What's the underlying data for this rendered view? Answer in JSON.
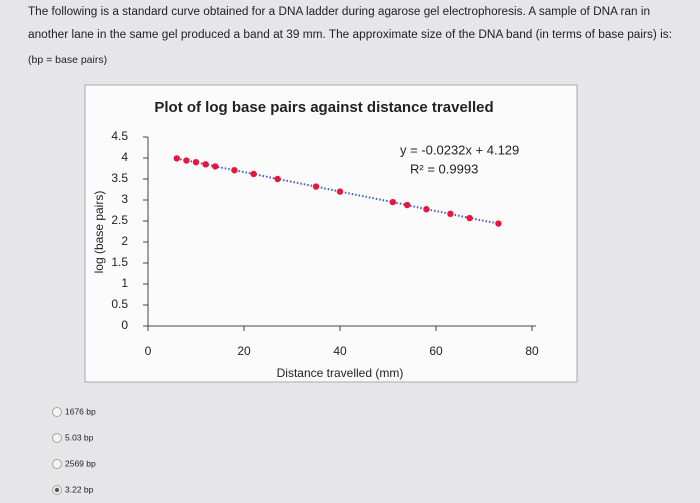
{
  "question": {
    "lines": [
      "The following is a standard curve obtained for a DNA ladder during agarose gel electrophoresis. A sample of DNA ran in",
      "another lane in the same gel produced a band at 39 mm. The approximate size of the DNA band (in terms of base pairs) is:"
    ],
    "note": "(bp = base pairs)"
  },
  "chart_data": {
    "type": "scatter",
    "title": "Plot of log base pairs against distance travelled",
    "x_label": "Distance travelled (mm)",
    "y_label": "log (base pairs)",
    "x": [
      6,
      8,
      10,
      12,
      14,
      18,
      22,
      27,
      35,
      40,
      51,
      54,
      58,
      63,
      67,
      73
    ],
    "values": [
      3.99,
      3.94,
      3.9,
      3.85,
      3.8,
      3.71,
      3.62,
      3.5,
      3.32,
      3.2,
      2.95,
      2.88,
      2.78,
      2.67,
      2.57,
      2.44
    ],
    "color": "#e8173a",
    "line_color": "#3b5bd6",
    "xlim": [
      0,
      80
    ],
    "xticks": [
      0,
      20,
      40,
      60,
      80
    ],
    "ylim": [
      0,
      4.5
    ],
    "yticks": [
      0,
      0.5,
      1,
      1.5,
      2,
      2.5,
      3,
      3.5,
      4,
      4.5
    ],
    "annotations": [
      "y = -0.0232x + 4.129",
      "R² = 0.9993"
    ]
  },
  "options": [
    {
      "label": "1676 bp",
      "selected": false
    },
    {
      "label": "5.03 bp",
      "selected": false
    },
    {
      "label": "2569 bp",
      "selected": false
    },
    {
      "label": "3.22 bp",
      "selected": true
    }
  ]
}
